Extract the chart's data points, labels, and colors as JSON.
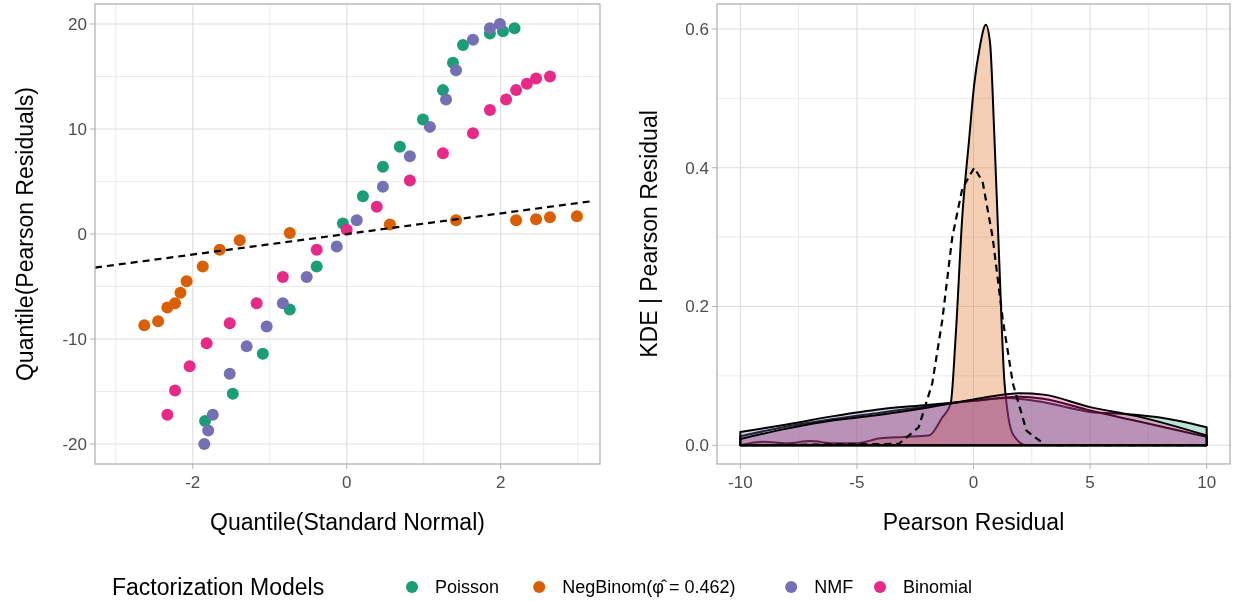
{
  "chart_data": [
    {
      "type": "scatter",
      "xlabel": "Quantile(Standard Normal)",
      "ylabel": "Quantile(Pearson Residuals)",
      "xlim": [
        -3.27,
        3.29
      ],
      "ylim": [
        -21.9,
        21.9
      ],
      "xticks": [
        {
          "value": -3,
          "label": null
        },
        -2,
        {
          "value": -1,
          "label": null
        },
        0,
        {
          "value": 1,
          "label": null
        },
        2,
        {
          "value": 3,
          "label": null
        }
      ],
      "yticks": [
        -20,
        {
          "value": -15,
          "label": null
        },
        -10,
        {
          "value": -5,
          "label": null
        },
        0,
        {
          "value": 5,
          "label": null
        },
        10,
        {
          "value": 15,
          "label": null
        },
        20
      ],
      "grid": true,
      "marker": "circle",
      "legend": "bottom",
      "legend_title": "Factorization Models",
      "series": [
        {
          "name": "Poisson",
          "color": "#1b9e77",
          "x": [
            -1.84,
            -1.48,
            -1.09,
            -0.74,
            -0.39,
            -0.05,
            0.21,
            0.47,
            0.69,
            0.99,
            1.25,
            1.38,
            1.51,
            1.86,
            2.03,
            2.18
          ],
          "values": [
            -17.8,
            -15.2,
            -11.4,
            -7.2,
            -3.1,
            1.0,
            3.6,
            6.4,
            8.3,
            10.9,
            13.7,
            16.3,
            18.0,
            19.1,
            19.3,
            19.6
          ]
        },
        {
          "name": "NegBinom(φ̂ = 0.462)",
          "color": "#d95f02",
          "x": [
            -2.63,
            -2.45,
            -2.33,
            -2.23,
            -2.16,
            -2.08,
            -1.87,
            -1.65,
            -1.39,
            -0.74,
            0,
            0.56,
            1.42,
            2.2,
            2.46,
            2.64,
            2.99
          ],
          "values": [
            -8.7,
            -8.3,
            -7.0,
            -6.6,
            -5.6,
            -4.5,
            -3.1,
            -1.5,
            -0.6,
            0.1,
            null,
            0.9,
            1.3,
            1.3,
            1.4,
            1.6,
            1.7
          ]
        },
        {
          "name": "NMF",
          "color": "#7570b3",
          "x": [
            -1.85,
            -1.8,
            -1.74,
            -1.52,
            -1.3,
            -1.04,
            -0.83,
            -0.52,
            -0.13,
            0.13,
            0.47,
            0.82,
            1.08,
            1.29,
            1.42,
            1.64,
            1.86,
            1.99
          ],
          "values": [
            -20.0,
            -18.7,
            -17.2,
            -13.3,
            -10.7,
            -8.8,
            -6.6,
            -4.1,
            -1.2,
            1.3,
            4.5,
            7.4,
            10.2,
            12.8,
            15.6,
            18.5,
            19.6,
            20.0
          ]
        },
        {
          "name": "Binomial",
          "color": "#e7298a",
          "x": [
            -2.33,
            -2.23,
            -2.04,
            -1.82,
            -1.52,
            -1.17,
            -0.83,
            -0.39,
            0,
            0.39,
            0.82,
            1.25,
            1.64,
            1.86,
            2.07,
            2.2,
            2.34,
            2.46,
            2.64
          ],
          "values": [
            -17.2,
            -14.9,
            -12.6,
            -10.4,
            -8.5,
            -6.6,
            -4.1,
            -1.5,
            0.4,
            2.6,
            5.1,
            7.7,
            9.6,
            11.8,
            12.8,
            13.7,
            14.3,
            14.8,
            15.0
          ]
        },
        {
          "type": "line",
          "color": "#000000",
          "line_style": "dashed",
          "marker": "none",
          "x": [
            -3.27,
            3.16
          ],
          "values": [
            -3.2,
            3.1
          ]
        }
      ]
    },
    {
      "type": "area",
      "xlabel": "Pearson Residual",
      "ylabel": "KDE | Pearson Residual",
      "xlim": [
        -11,
        11
      ],
      "ylim": [
        -0.027,
        0.636
      ],
      "xticks": [
        -10,
        {
          "value": -7.5,
          "label": null
        },
        -5,
        {
          "value": -2.5,
          "label": null
        },
        0,
        {
          "value": 2.5,
          "label": null
        },
        5,
        {
          "value": 7.5,
          "label": null
        },
        10
      ],
      "yticks": [
        {
          "value": 0,
          "label": "0.0"
        },
        {
          "value": 0.1,
          "label": null
        },
        {
          "value": 0.2,
          "label": "0.2"
        },
        {
          "value": 0.3,
          "label": null
        },
        {
          "value": 0.4,
          "label": "0.4"
        },
        {
          "value": 0.5,
          "label": null
        },
        {
          "value": 0.6,
          "label": "0.6"
        }
      ],
      "grid": true,
      "series": [
        {
          "color": "#1b9e77",
          "x": [
            -10,
            -8,
            -6,
            -4,
            -2,
            0,
            1.5,
            3,
            5,
            6.5,
            8,
            10
          ],
          "values": [
            0.013,
            0.027,
            0.038,
            0.047,
            0.056,
            0.064,
            0.068,
            0.062,
            0.048,
            0.045,
            0.04,
            0.026
          ]
        },
        {
          "color": "#d95f02",
          "x": [
            -10,
            -9,
            -8,
            -7,
            -6,
            -5,
            -4,
            -3,
            -1.92,
            -1.34,
            -0.98,
            -0.76,
            -0.48,
            -0.19,
            0.03,
            0.25,
            0.53,
            0.71,
            0.89,
            1.11,
            1.33,
            1.69,
            2.27,
            10
          ],
          "values": [
            0,
            0.005,
            0.003,
            0.006,
            0.003,
            0.003,
            0.01,
            0.012,
            0.014,
            0.04,
            0.06,
            0.16,
            0.33,
            0.44,
            0.52,
            0.57,
            0.606,
            0.58,
            0.45,
            0.26,
            0.09,
            0.016,
            0,
            0
          ]
        },
        {
          "color": "#7570b3",
          "x": [
            -10,
            -8,
            -6,
            -4,
            -2,
            0,
            2,
            3,
            5,
            7,
            10
          ],
          "values": [
            0.019,
            0.03,
            0.042,
            0.052,
            0.058,
            0.064,
            0.07,
            0.067,
            0.05,
            0.035,
            0.012
          ]
        },
        {
          "color": "#e7298a",
          "x": [
            -10,
            -8,
            -6,
            -4,
            -2,
            0,
            2,
            3,
            5,
            7,
            10
          ],
          "values": [
            0.009,
            0.024,
            0.036,
            0.044,
            0.054,
            0.066,
            0.075,
            0.073,
            0.055,
            0.042,
            0.014
          ]
        },
        {
          "type": "line",
          "color": "#000000",
          "line_style": "dashed",
          "x": [
            -10,
            -3.2,
            -2.35,
            -1.77,
            -1.34,
            -0.91,
            -0.48,
            0.03,
            0.39,
            0.82,
            1.26,
            1.69,
            2.27,
            3.1,
            10
          ],
          "values": [
            0,
            0.002,
            0.026,
            0.089,
            0.18,
            0.3,
            0.37,
            0.4,
            0.38,
            0.3,
            0.18,
            0.089,
            0.021,
            0,
            0
          ]
        }
      ]
    }
  ]
}
